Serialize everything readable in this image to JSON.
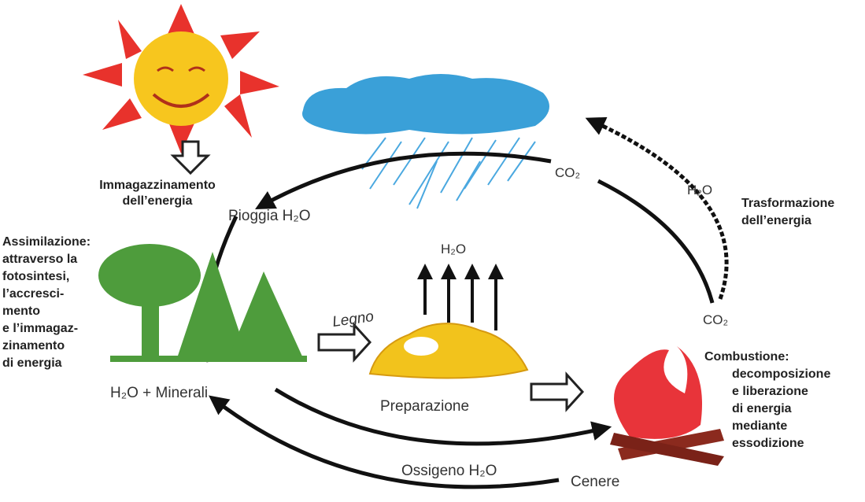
{
  "labels": {
    "storage": {
      "lines": [
        "Immagazzinamento",
        "dell’energia"
      ]
    },
    "rain": "Pioggia H₂O",
    "co2_top": "CO₂",
    "h2o_right": "H₂O",
    "transformation": {
      "lines": [
        "Trasformazione",
        "dell’energia"
      ]
    },
    "assimilation": {
      "lines": [
        "Assimilazione:",
        "attraverso la",
        "fotosintesi,",
        "l’accresci-",
        "mento",
        "e l’immagaz-",
        "zinamento",
        "di energia"
      ]
    },
    "h2o_center": "H₂O",
    "wood": "Legno",
    "minerals": "H₂O + Minerali",
    "preparation": "Preparazione",
    "co2_right": "CO₂",
    "combustion": {
      "lines": [
        "Combustione:",
        "decomposizione",
        "e liberazione",
        "di energia",
        "mediante",
        "essodizione"
      ]
    },
    "oxygen": "Ossigeno H₂O",
    "ash": "Cenere"
  }
}
